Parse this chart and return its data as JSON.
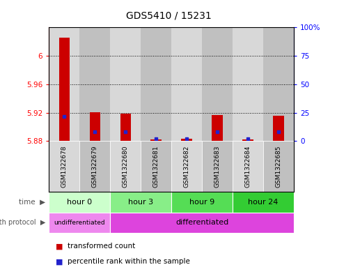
{
  "title": "GDS5410 / 15231",
  "samples": [
    "GSM1322678",
    "GSM1322679",
    "GSM1322680",
    "GSM1322681",
    "GSM1322682",
    "GSM1322683",
    "GSM1322684",
    "GSM1322685"
  ],
  "transformed_counts": [
    6.026,
    5.921,
    5.919,
    5.882,
    5.883,
    5.917,
    5.882,
    5.916
  ],
  "percentile_ranks": [
    22,
    8,
    8,
    2,
    2,
    8,
    2,
    8
  ],
  "ylim_left": [
    5.88,
    6.04
  ],
  "ylim_right": [
    0,
    100
  ],
  "yticks_left": [
    5.88,
    5.92,
    5.96,
    6.0
  ],
  "ytick_labels_left": [
    "5.88",
    "5.92",
    "5.96",
    "6"
  ],
  "yticks_right": [
    0,
    25,
    50,
    75,
    100
  ],
  "ytick_labels_right": [
    "0",
    "25",
    "50",
    "75",
    "100%"
  ],
  "time_groups": [
    {
      "label": "hour 0",
      "start": 0,
      "end": 1,
      "color": "#ccffcc"
    },
    {
      "label": "hour 3",
      "start": 2,
      "end": 3,
      "color": "#88ee88"
    },
    {
      "label": "hour 9",
      "start": 4,
      "end": 5,
      "color": "#55dd55"
    },
    {
      "label": "hour 24",
      "start": 6,
      "end": 7,
      "color": "#33cc33"
    }
  ],
  "growth_groups": [
    {
      "label": "undifferentiated",
      "start": 0,
      "end": 1,
      "color": "#ee88ee"
    },
    {
      "label": "differentiated",
      "start": 2,
      "end": 7,
      "color": "#dd44dd"
    }
  ],
  "bar_color_red": "#cc0000",
  "bar_color_blue": "#2222cc",
  "cell_color_light": "#d8d8d8",
  "cell_color_dark": "#c0c0c0",
  "base_value": 5.88,
  "bar_width": 0.35
}
